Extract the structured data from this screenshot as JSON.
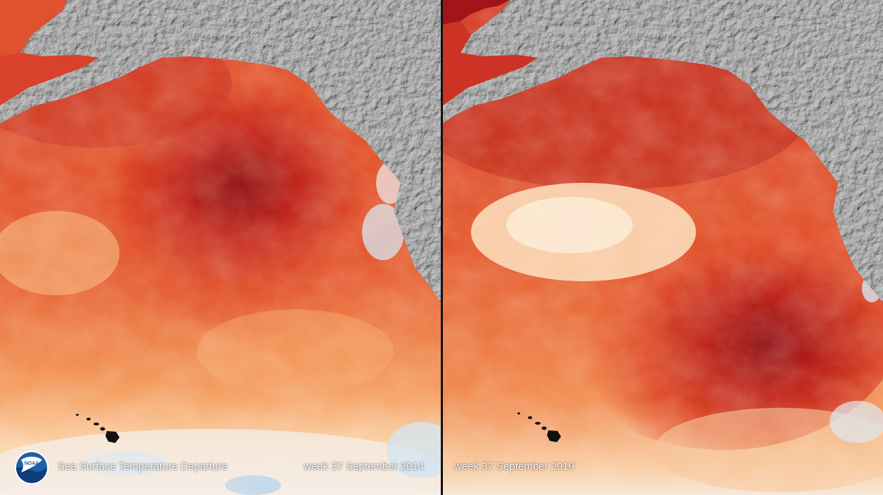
{
  "figure": {
    "title": "Sea Surface Temperature Departure",
    "logo": {
      "icon": "noaa-logo-icon",
      "text": "NOAA"
    }
  },
  "panels": [
    {
      "id": "left",
      "date_label": "week 37 September 2014"
    },
    {
      "id": "right",
      "date_label": "week 37 September 2019"
    }
  ],
  "colors": {
    "warm_dark": "#9e0f14",
    "warm_mid": "#e2522a",
    "warm_light": "#f6a260",
    "near_zero": "#fde6c8",
    "cool_light": "#cfe3f2",
    "cool": "#6aa6d6",
    "land": "#a9a9a9",
    "land_shadow": "#555555",
    "divider": "#111111"
  }
}
